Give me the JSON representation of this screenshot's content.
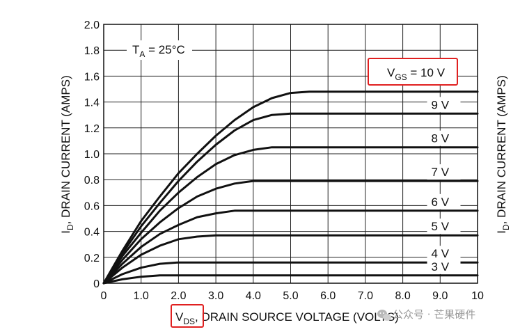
{
  "chart_data": {
    "type": "line",
    "xlabel_sym": "V",
    "xlabel_sub": "DS",
    "xlabel_rest": ", DRAIN SOURCE VOLTAGE (VOLTS)",
    "ylabel_sym": "I",
    "ylabel_sub": "D",
    "ylabel_rest": ", DRAIN CURRENT (AMPS)",
    "xlim": [
      0,
      10
    ],
    "ylim": [
      0,
      2.0
    ],
    "x_ticks": [
      "0",
      "1.0",
      "2.0",
      "3.0",
      "4.0",
      "5.0",
      "6.0",
      "7.0",
      "8.0",
      "9.0",
      "10"
    ],
    "y_ticks": [
      "0",
      "0.2",
      "0.4",
      "0.6",
      "0.8",
      "1.0",
      "1.2",
      "1.4",
      "1.6",
      "1.8",
      "2.0"
    ],
    "grid": true,
    "annotation": {
      "sym": "T",
      "sub": "A",
      "rest": " = 25°C"
    },
    "highlight_color": "#e02020",
    "series": [
      {
        "name": "10 V",
        "vgs_sym": "V",
        "vgs_sub": "GS",
        "vgs_rest": " = 10 V",
        "x": [
          0,
          0.5,
          1.0,
          1.5,
          2.0,
          2.5,
          3.0,
          3.5,
          4.0,
          4.5,
          5.0,
          5.5,
          6.0,
          7.0,
          8.0,
          9.0,
          10.0
        ],
        "y": [
          0,
          0.25,
          0.48,
          0.67,
          0.85,
          1.0,
          1.14,
          1.26,
          1.36,
          1.43,
          1.47,
          1.48,
          1.48,
          1.48,
          1.48,
          1.48,
          1.48
        ]
      },
      {
        "name": "9 V",
        "x": [
          0,
          0.5,
          1.0,
          1.5,
          2.0,
          2.5,
          3.0,
          3.5,
          4.0,
          4.5,
          5.0,
          6.0,
          7.0,
          8.0,
          9.0,
          10.0
        ],
        "y": [
          0,
          0.23,
          0.44,
          0.62,
          0.79,
          0.94,
          1.07,
          1.18,
          1.26,
          1.3,
          1.31,
          1.31,
          1.31,
          1.31,
          1.31,
          1.31
        ]
      },
      {
        "name": "8 V",
        "x": [
          0,
          0.5,
          1.0,
          1.5,
          2.0,
          2.5,
          3.0,
          3.5,
          4.0,
          4.5,
          5.0,
          6.0,
          7.0,
          8.0,
          9.0,
          10.0
        ],
        "y": [
          0,
          0.21,
          0.39,
          0.56,
          0.7,
          0.82,
          0.92,
          0.99,
          1.03,
          1.05,
          1.05,
          1.05,
          1.05,
          1.05,
          1.05,
          1.05
        ]
      },
      {
        "name": "7 V",
        "x": [
          0,
          0.5,
          1.0,
          1.5,
          2.0,
          2.5,
          3.0,
          3.5,
          4.0,
          5.0,
          6.0,
          7.0,
          8.0,
          9.0,
          10.0
        ],
        "y": [
          0,
          0.18,
          0.34,
          0.47,
          0.58,
          0.67,
          0.73,
          0.77,
          0.79,
          0.79,
          0.79,
          0.79,
          0.79,
          0.79,
          0.79
        ]
      },
      {
        "name": "6 V",
        "x": [
          0,
          0.5,
          1.0,
          1.5,
          2.0,
          2.5,
          3.0,
          3.5,
          4.0,
          5.0,
          6.0,
          7.0,
          8.0,
          9.0,
          10.0
        ],
        "y": [
          0,
          0.15,
          0.28,
          0.38,
          0.45,
          0.51,
          0.54,
          0.56,
          0.56,
          0.56,
          0.56,
          0.56,
          0.56,
          0.56,
          0.56
        ]
      },
      {
        "name": "5 V",
        "x": [
          0,
          0.5,
          1.0,
          1.5,
          2.0,
          2.5,
          3.0,
          3.5,
          4.0,
          5.0,
          6.0,
          7.0,
          8.0,
          9.0,
          10.0
        ],
        "y": [
          0,
          0.12,
          0.22,
          0.29,
          0.34,
          0.36,
          0.37,
          0.37,
          0.37,
          0.37,
          0.37,
          0.37,
          0.37,
          0.37,
          0.37
        ]
      },
      {
        "name": "4 V",
        "x": [
          0,
          0.5,
          1.0,
          1.5,
          2.0,
          2.5,
          3.0,
          4.0,
          5.0,
          6.0,
          7.0,
          8.0,
          9.0,
          10.0
        ],
        "y": [
          0,
          0.07,
          0.12,
          0.15,
          0.16,
          0.16,
          0.16,
          0.16,
          0.16,
          0.16,
          0.16,
          0.16,
          0.16,
          0.16
        ]
      },
      {
        "name": "3 V",
        "x": [
          0,
          0.5,
          1.0,
          1.5,
          2.0,
          3.0,
          4.0,
          5.0,
          6.0,
          7.0,
          8.0,
          9.0,
          10.0
        ],
        "y": [
          0,
          0.03,
          0.05,
          0.06,
          0.06,
          0.06,
          0.06,
          0.06,
          0.06,
          0.06,
          0.06,
          0.06,
          0.06
        ]
      }
    ]
  },
  "watermark": {
    "text": "公众号 · 芒果硬件",
    "icon": "wechat-icon"
  }
}
